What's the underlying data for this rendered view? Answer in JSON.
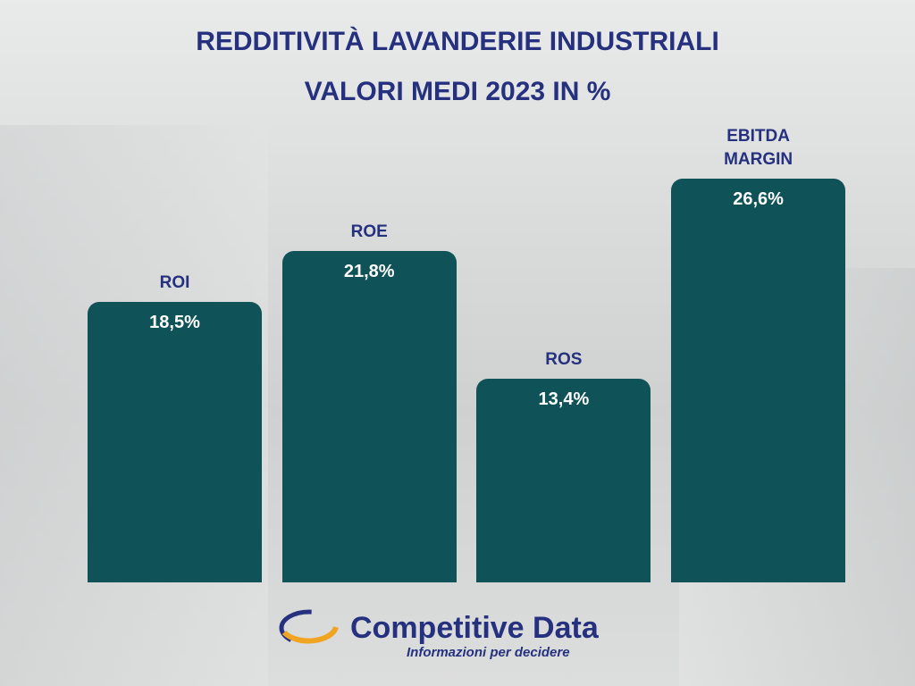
{
  "chart_data": {
    "type": "bar",
    "title": "REDDITIVITÀ LAVANDERIE INDUSTRIALI",
    "subtitle": "VALORI MEDI 2023 IN %",
    "categories": [
      "ROI",
      "ROE",
      "ROS",
      "EBITDA MARGIN"
    ],
    "values": [
      18.5,
      21.8,
      13.4,
      26.6
    ],
    "value_labels": [
      "18,5%",
      "21,8%",
      "13,4%",
      "26,6%"
    ],
    "color": "#0f5257"
  },
  "logo": {
    "name": "Competitive Data",
    "tagline": "Informazioni per decidere"
  }
}
